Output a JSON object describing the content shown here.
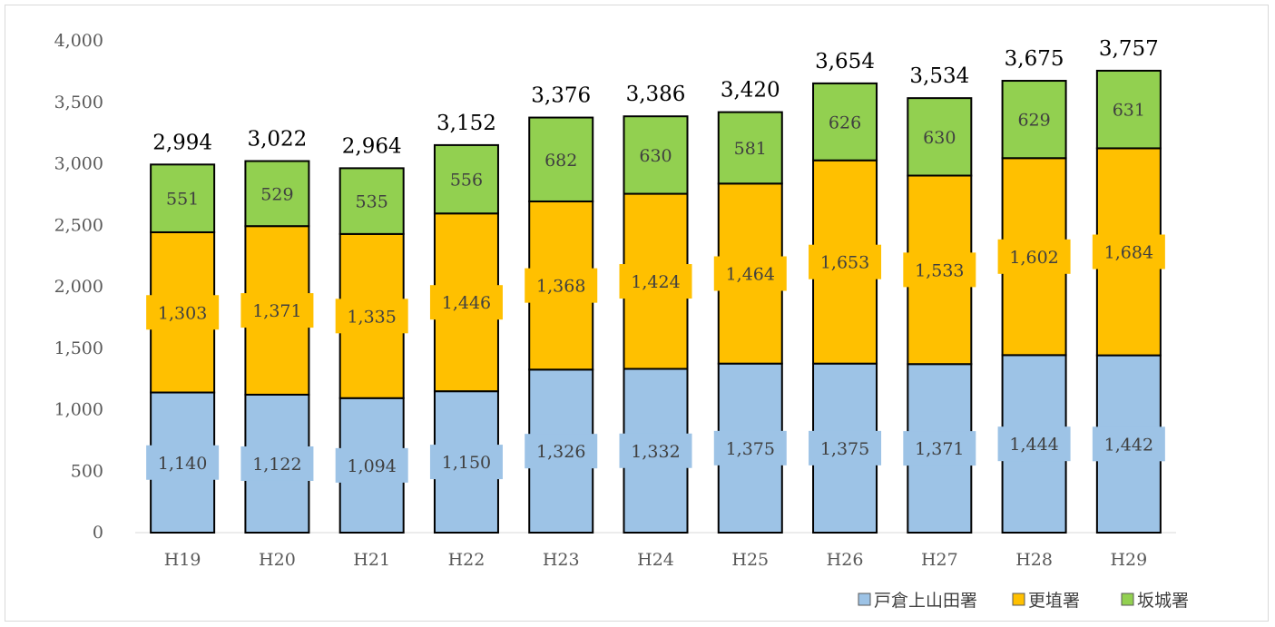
{
  "chart_data": {
    "type": "bar",
    "stacked": true,
    "categories": [
      "H19",
      "H20",
      "H21",
      "H22",
      "H23",
      "H24",
      "H25",
      "H26",
      "H27",
      "H28",
      "H29"
    ],
    "series": [
      {
        "name": "戸倉上山田署",
        "color": "#9DC3E6",
        "values": [
          1140,
          1122,
          1094,
          1150,
          1326,
          1332,
          1375,
          1375,
          1371,
          1444,
          1442
        ]
      },
      {
        "name": "更埴署",
        "color": "#FFC000",
        "values": [
          1303,
          1371,
          1335,
          1446,
          1368,
          1424,
          1464,
          1653,
          1533,
          1602,
          1684
        ]
      },
      {
        "name": "坂城署",
        "color": "#92D050",
        "values": [
          551,
          529,
          535,
          556,
          682,
          630,
          581,
          626,
          630,
          629,
          631
        ]
      }
    ],
    "series_labels": [
      [
        "1,140",
        "1,122",
        "1,094",
        "1,150",
        "1,326",
        "1,332",
        "1,375",
        "1,375",
        "1,371",
        "1,444",
        "1,442"
      ],
      [
        "1,303",
        "1,371",
        "1,335",
        "1,446",
        "1,368",
        "1,424",
        "1,464",
        "1,653",
        "1,533",
        "1,602",
        "1,684"
      ],
      [
        "551",
        "529",
        "535",
        "556",
        "682",
        "630",
        "581",
        "626",
        "630",
        "629",
        "631"
      ]
    ],
    "totals": [
      2994,
      3022,
      2964,
      3152,
      3376,
      3386,
      3420,
      3654,
      3534,
      3675,
      3757
    ],
    "total_labels": [
      "2,994",
      "3,022",
      "2,964",
      "3,152",
      "3,376",
      "3,386",
      "3,420",
      "3,654",
      "3,534",
      "3,675",
      "3,757"
    ],
    "ylim": [
      0,
      4000
    ],
    "yticks": [
      0,
      500,
      1000,
      1500,
      2000,
      2500,
      3000,
      3500,
      4000
    ],
    "ytick_labels": [
      "0",
      "500",
      "1,000",
      "1,500",
      "2,000",
      "2,500",
      "3,000",
      "3,500",
      "4,000"
    ],
    "grid": false,
    "legend_position": "bottom-right",
    "title": "",
    "xlabel": "",
    "ylabel": ""
  }
}
